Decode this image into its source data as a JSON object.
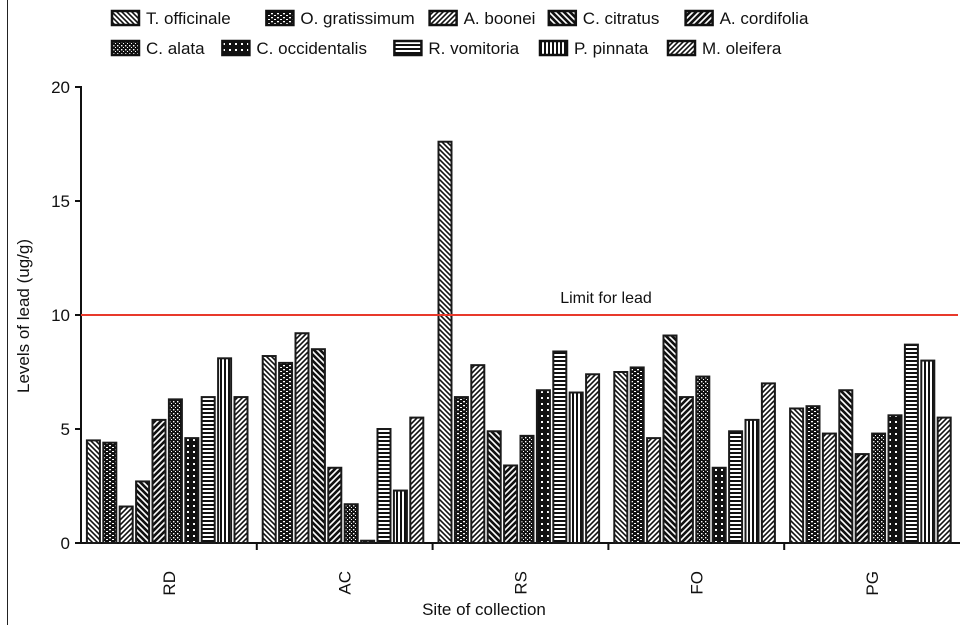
{
  "chart_data": {
    "type": "bar",
    "title": "",
    "xlabel": "Site of collection",
    "ylabel": "Levels of lead (ug/g)",
    "categories": [
      "RD",
      "AC",
      "RS",
      "FO",
      "PG"
    ],
    "ylim": [
      0,
      20
    ],
    "yticks": [
      0,
      5,
      10,
      15,
      20
    ],
    "legend_position": "top",
    "series": [
      {
        "name": "T. officinale",
        "pattern": "diag-left",
        "values": [
          4.5,
          8.2,
          17.6,
          7.5,
          5.9
        ]
      },
      {
        "name": "O. gratissimum",
        "pattern": "brick",
        "values": [
          4.4,
          7.9,
          6.4,
          7.7,
          6.0
        ]
      },
      {
        "name": "A. boonei",
        "pattern": "diag-right",
        "values": [
          1.6,
          9.2,
          7.8,
          4.6,
          4.8
        ]
      },
      {
        "name": "C. citratus",
        "pattern": "diag-left-thick",
        "values": [
          2.7,
          8.5,
          4.9,
          9.1,
          6.7
        ]
      },
      {
        "name": "A. cordifolia",
        "pattern": "diag-right-thick",
        "values": [
          5.4,
          3.3,
          3.4,
          6.4,
          3.9
        ]
      },
      {
        "name": "C. alata",
        "pattern": "dots",
        "values": [
          6.3,
          1.7,
          4.7,
          7.3,
          4.8
        ]
      },
      {
        "name": "C. occidentalis",
        "pattern": "checker",
        "values": [
          4.6,
          0.1,
          6.7,
          3.3,
          5.6
        ]
      },
      {
        "name": "R. vomitoria",
        "pattern": "horizontal",
        "values": [
          6.4,
          5.0,
          8.4,
          4.9,
          8.7
        ]
      },
      {
        "name": "P. pinnata",
        "pattern": "vertical",
        "values": [
          8.1,
          2.3,
          6.6,
          5.4,
          8.0
        ]
      },
      {
        "name": "M. oleifera",
        "pattern": "diag-right",
        "values": [
          6.4,
          5.5,
          7.4,
          7.0,
          5.5
        ]
      }
    ],
    "reference_line": {
      "value": 10,
      "label": "Limit for lead",
      "color": "#e8392b"
    },
    "bar_color": "#1a1a1a"
  }
}
